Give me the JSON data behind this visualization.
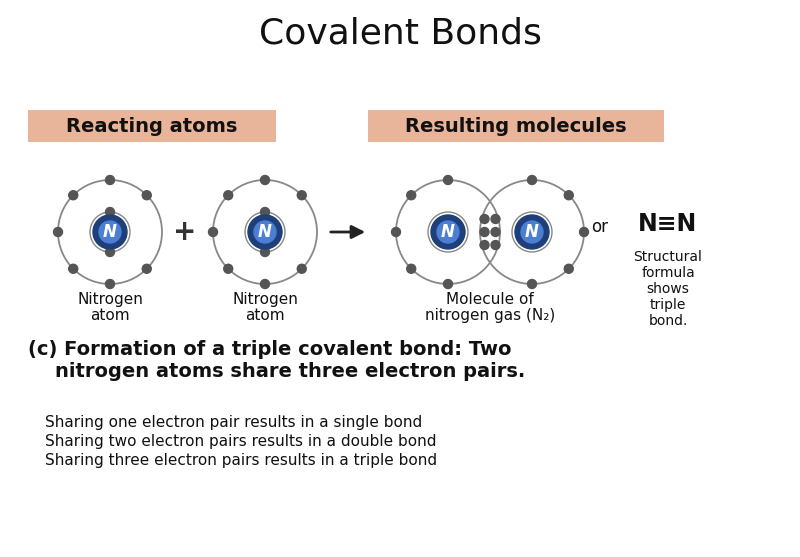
{
  "title": "Covalent Bonds",
  "background_color": "#ffffff",
  "header_bg_color": "#e8b49a",
  "atom_nucleus_color_outer": "#1e3f7a",
  "atom_nucleus_color_inner": "#4a7fd4",
  "atom_text_color": "#ffffff",
  "electron_color": "#555555",
  "orbit_color": "#888888",
  "label1": "Reacting atoms",
  "label2": "Resulting molecules",
  "nitrogen_label1": "Nitrogen",
  "nitrogen_label2": "atom",
  "molecule_label1": "Molecule of",
  "molecule_label2": "nitrogen gas (N₂)",
  "caption_line1": "(c) Formation of a triple covalent bond: Two",
  "caption_line2": "    nitrogen atoms share three electron pairs.",
  "or_text": "or",
  "formula_text": "N≡N",
  "structural_lines": [
    "Structural",
    "formula",
    "shows",
    "triple",
    "bond."
  ],
  "bottom_lines": [
    "Sharing one electron pair results in a single bond",
    "Sharing two electron pairs results in a double bond",
    "Sharing three electron pairs results in a triple bond"
  ]
}
